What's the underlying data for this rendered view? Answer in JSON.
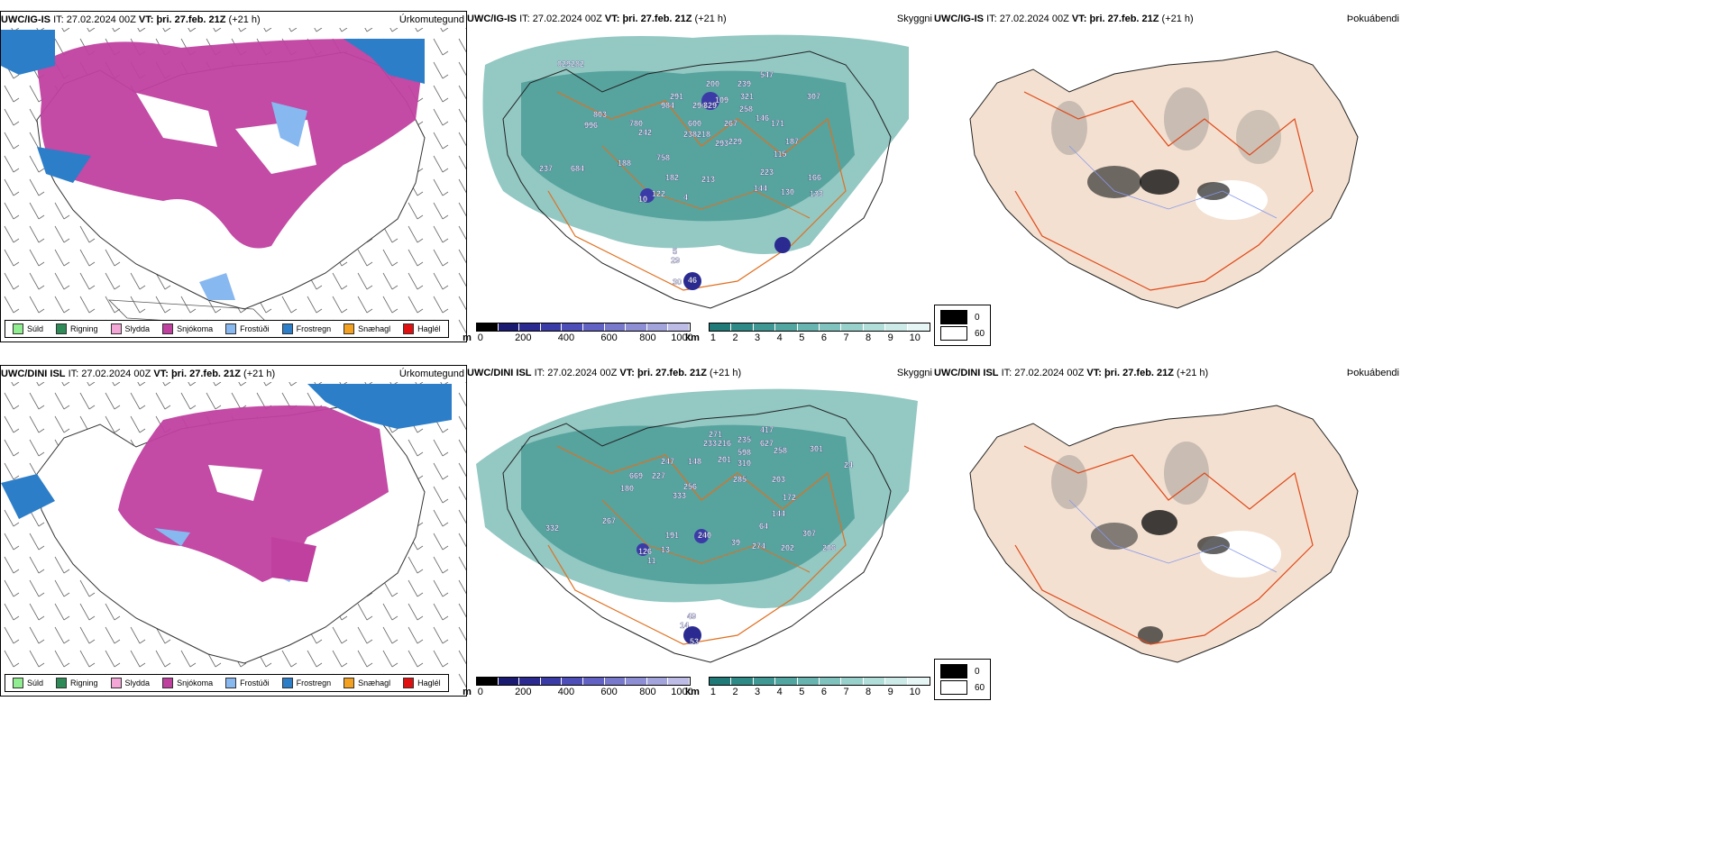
{
  "rows": [
    {
      "model": "UWC/IG-IS",
      "it_label": "IT:",
      "it_value": "27.02.2024 00Z",
      "vt_label": "VT:",
      "vt_value": "þri. 27.feb. 21Z",
      "lead": "(+21 h)"
    },
    {
      "model": "UWC/DINI ISL",
      "it_label": "IT:",
      "it_value": "27.02.2024 00Z",
      "vt_label": "VT:",
      "vt_value": "þri. 27.feb. 21Z",
      "lead": "(+21 h)"
    }
  ],
  "panel_titles": {
    "precip_type": "Úrkomutegund",
    "visibility": "Skyggni",
    "fog": "Þokuábendi"
  },
  "precip_legend": [
    {
      "label": "Súld",
      "color": "#90ee90"
    },
    {
      "label": "Rigning",
      "color": "#2e8b57"
    },
    {
      "label": "Slydda",
      "color": "#f4a6d7"
    },
    {
      "label": "Snjókoma",
      "color": "#c040a0"
    },
    {
      "label": "Frostúði",
      "color": "#87b8f0"
    },
    {
      "label": "Frostregn",
      "color": "#2c7ec8"
    },
    {
      "label": "Snæhagl",
      "color": "#f4a020"
    },
    {
      "label": "Haglél",
      "color": "#e01010"
    }
  ],
  "vis_colorbar_m": {
    "unit": "m",
    "ticks": [
      "0",
      "200",
      "400",
      "600",
      "800",
      "1000"
    ],
    "colors": [
      "#000000",
      "#1a1a70",
      "#2a2a90",
      "#3b3ba8",
      "#4e4eb8",
      "#6262c4",
      "#7878cc",
      "#8e8ed4",
      "#a4a4dc",
      "#bcbce6"
    ]
  },
  "vis_colorbar_km": {
    "unit": "km",
    "ticks": [
      "1",
      "2",
      "3",
      "4",
      "5",
      "6",
      "7",
      "8",
      "9",
      "10"
    ],
    "colors": [
      "#1f7a78",
      "#2e8a86",
      "#3f9894",
      "#52a6a2",
      "#68b4b0",
      "#80c2be",
      "#98d0cc",
      "#b2deda",
      "#cceae8",
      "#e6f6f4"
    ]
  },
  "fog_legend": {
    "low": "0",
    "high": "60"
  },
  "visibility_labels_top": [
    "029282",
    "803",
    "996",
    "780",
    "242",
    "291",
    "984",
    "294",
    "329",
    "200",
    "239",
    "547",
    "307",
    "109",
    "321",
    "600",
    "238218",
    "267",
    "146",
    "258",
    "293",
    "229",
    "171",
    "187",
    "115",
    "758",
    "188",
    "684",
    "237",
    "182",
    "213",
    "223",
    "166",
    "133",
    "144",
    "130",
    "122",
    "10",
    "4",
    "46",
    "30",
    "5",
    "29"
  ],
  "visibility_labels_bottom": [
    "271",
    "417",
    "233",
    "216",
    "235",
    "627",
    "258",
    "301",
    "201",
    "598",
    "310",
    "247",
    "148",
    "669",
    "227",
    "256",
    "180",
    "333",
    "285",
    "203",
    "172",
    "144",
    "267",
    "332",
    "191",
    "240",
    "64",
    "307",
    "126",
    "13",
    "39",
    "274",
    "202",
    "206",
    "24",
    "49",
    "53",
    "11",
    "14"
  ],
  "colors": {
    "snow": "#c040a0",
    "freezing_rain": "#2c7ec8",
    "freezing_drizzle": "#87b8f0",
    "vis_teal": "#3a9a92",
    "vis_blue": "#3b3ba8",
    "roads_orange": "#e07020",
    "fog_land": "#f3e0d0",
    "coast": "#333333"
  }
}
